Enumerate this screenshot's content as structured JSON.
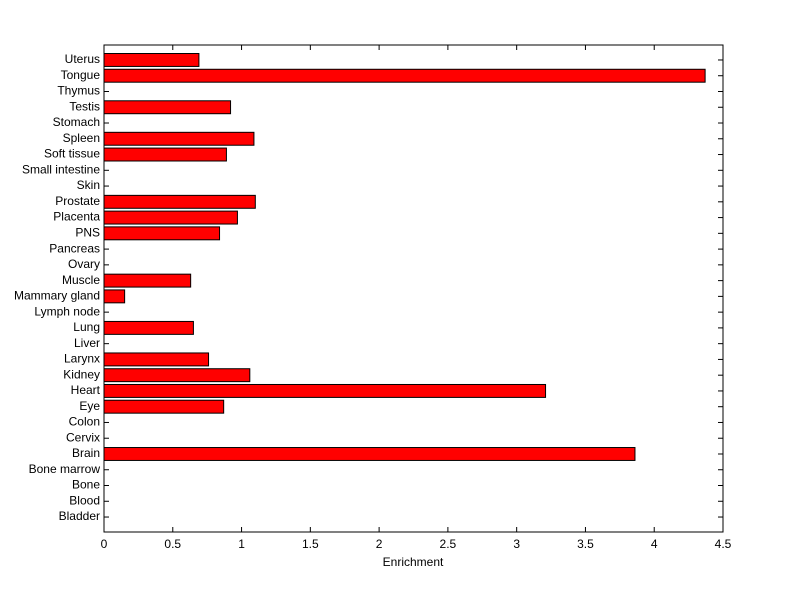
{
  "chart_data": {
    "type": "barh",
    "xlabel": "Enrichment",
    "categories": [
      "Bladder",
      "Blood",
      "Bone",
      "Bone marrow",
      "Brain",
      "Cervix",
      "Colon",
      "Eye",
      "Heart",
      "Kidney",
      "Larynx",
      "Liver",
      "Lung",
      "Lymph node",
      "Mammary gland",
      "Muscle",
      "Ovary",
      "Pancreas",
      "PNS",
      "Placenta",
      "Prostate",
      "Skin",
      "Small intestine",
      "Soft tissue",
      "Spleen",
      "Stomach",
      "Testis",
      "Thymus",
      "Tongue",
      "Uterus"
    ],
    "values": [
      0,
      0,
      0,
      0,
      3.86,
      0,
      0,
      0.87,
      3.21,
      1.06,
      0.76,
      0,
      0.65,
      0,
      0.15,
      0.63,
      0,
      0,
      0.84,
      0.97,
      1.1,
      0,
      0,
      0.89,
      1.09,
      0,
      0.92,
      0,
      4.37,
      0.69
    ],
    "color": "#ff0000",
    "xlim": [
      0,
      4.5
    ],
    "xticks": [
      0,
      0.5,
      1,
      1.5,
      2,
      2.5,
      3,
      3.5,
      4,
      4.5
    ]
  }
}
